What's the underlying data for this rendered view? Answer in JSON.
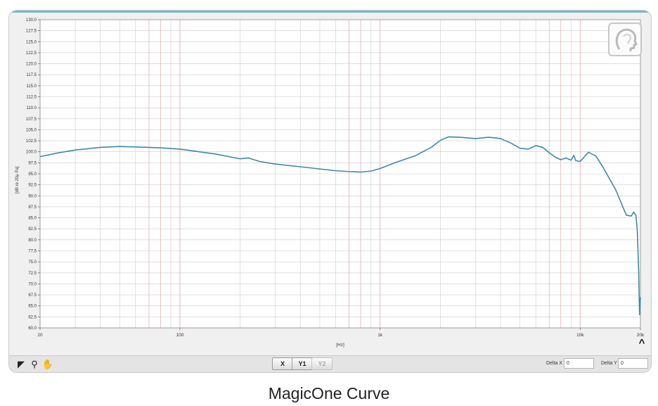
{
  "caption": "MagicOne  Curve",
  "toolbar": {
    "x_label": "X",
    "y1_label": "Y1",
    "y2_label": "Y2",
    "delta_x_label": "Delta X",
    "delta_x_value": "0",
    "delta_y_label": "Delta Y",
    "delta_y_value": "0"
  },
  "icons": {
    "pointer": "pointer-icon",
    "zoom": "magnifier-icon",
    "pan": "hand-icon",
    "collapse": "chevron-up-icon",
    "logo": "head-logo-icon"
  },
  "chart_data": {
    "type": "line",
    "title": "",
    "xlabel": "[Hz]",
    "ylabel": "[dB re 20µ Pa]",
    "xscale": "log",
    "xlim": [
      20,
      20000
    ],
    "ylim": [
      60,
      130
    ],
    "y_step": 2.5,
    "x_tick_labels": [
      {
        "x": 20,
        "label": "20"
      },
      {
        "x": 100,
        "label": "100"
      },
      {
        "x": 1000,
        "label": "1k"
      },
      {
        "x": 10000,
        "label": "10k"
      },
      {
        "x": 20000,
        "label": "20k"
      }
    ],
    "y_tick_labels": [
      "60.0",
      "62.5",
      "65.0",
      "67.5",
      "70.0",
      "72.5",
      "75.0",
      "77.5",
      "80.0",
      "82.5",
      "85.0",
      "87.5",
      "90.0",
      "92.5",
      "95.0",
      "97.5",
      "100.0",
      "102.5",
      "105.0",
      "107.5",
      "110.0",
      "112.5",
      "115.0",
      "117.5",
      "120.0",
      "122.5",
      "125.0",
      "127.5",
      "130.0"
    ],
    "grid": true,
    "colors": {
      "line": "#3e89a8",
      "grid_major": "#cccccc",
      "grid_decade": "#e2b3b3",
      "plot_bg": "#ffffff"
    },
    "series": [
      {
        "x": [
          20,
          25,
          30,
          40,
          50,
          60,
          80,
          100,
          150,
          200,
          220,
          250,
          300,
          400,
          500,
          600,
          700,
          800,
          900,
          1000,
          1200,
          1500,
          1800,
          2000,
          2200,
          2500,
          3000,
          3500,
          4000,
          4500,
          5000,
          5500,
          6000,
          6500,
          7000,
          7500,
          8000,
          8500,
          9000,
          9300,
          9500,
          10000,
          10500,
          11000,
          12000,
          13000,
          15000,
          16000,
          17000,
          18000,
          18500,
          19000,
          19300,
          19600,
          19800,
          20000
        ],
        "y": [
          98.9,
          99.8,
          100.4,
          101.0,
          101.2,
          101.1,
          100.9,
          100.6,
          99.5,
          98.4,
          98.6,
          97.8,
          97.2,
          96.6,
          96.1,
          95.7,
          95.5,
          95.4,
          95.6,
          96.2,
          97.6,
          99.1,
          101.0,
          102.6,
          103.4,
          103.3,
          103.0,
          103.3,
          103.0,
          102.0,
          100.8,
          100.6,
          101.4,
          101.0,
          99.8,
          98.8,
          98.2,
          98.6,
          98.1,
          99.2,
          98.0,
          97.8,
          98.9,
          99.9,
          99.0,
          96.5,
          91.5,
          88.5,
          85.6,
          85.4,
          86.3,
          85.5,
          82.0,
          73.0,
          63.0,
          67.0
        ]
      }
    ]
  }
}
